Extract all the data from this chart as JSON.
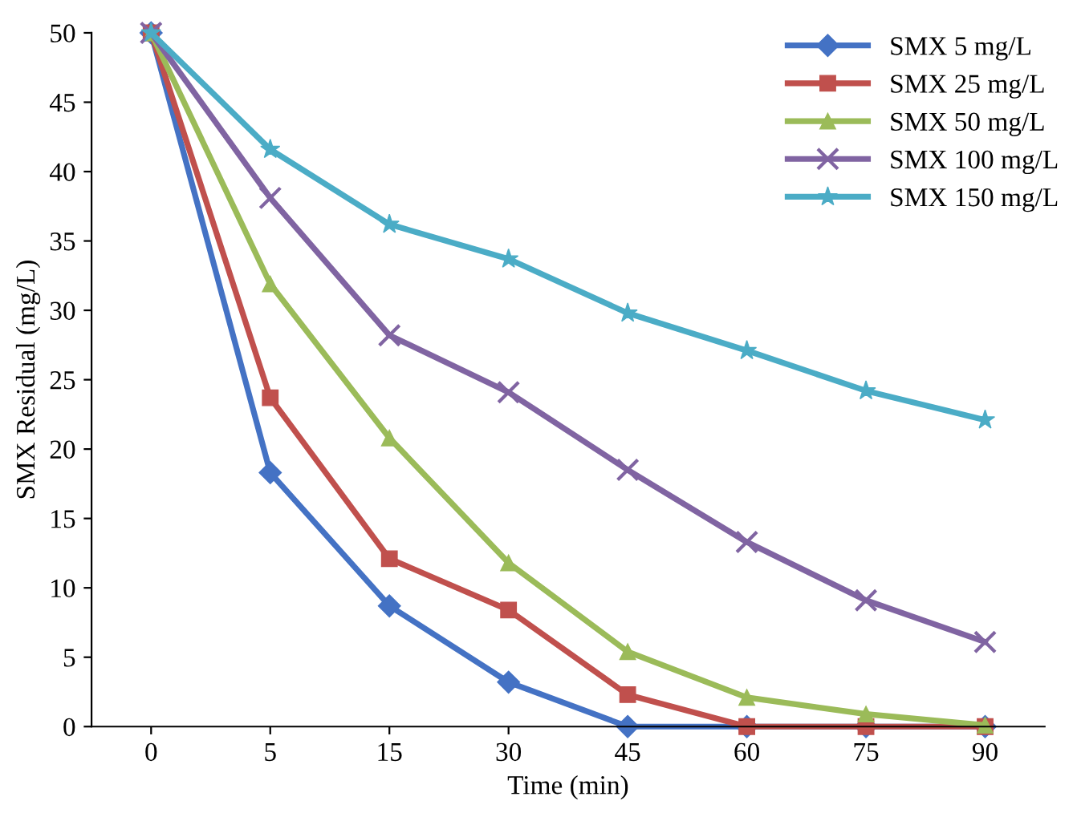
{
  "chart_data": {
    "type": "line",
    "xlabel": "Time (min)",
    "ylabel": "SMX Residual (mg/L)",
    "categories": [
      "0",
      "5",
      "15",
      "30",
      "45",
      "60",
      "75",
      "90"
    ],
    "ylim": [
      0,
      50
    ],
    "yticks": [
      0,
      5,
      10,
      15,
      20,
      25,
      30,
      35,
      40,
      45,
      50
    ],
    "grid": false,
    "legend": "top right",
    "line_style": "solid",
    "series": [
      {
        "name": "SMX 5 mg/L",
        "color": "#4472c4",
        "marker": "diamond",
        "values": [
          50,
          18.3,
          8.7,
          3.2,
          0,
          0,
          0,
          0
        ]
      },
      {
        "name": "SMX 25 mg/L",
        "color": "#c0504d",
        "marker": "square",
        "values": [
          50,
          23.7,
          12.1,
          8.4,
          2.3,
          0,
          0,
          0
        ]
      },
      {
        "name": "SMX 50 mg/L",
        "color": "#9bbb59",
        "marker": "triangle",
        "values": [
          50,
          31.9,
          20.8,
          11.8,
          5.4,
          2.1,
          0.9,
          0.1
        ]
      },
      {
        "name": "SMX 100 mg/L",
        "color": "#8064a2",
        "marker": "cross",
        "values": [
          50,
          38.1,
          28.2,
          24.1,
          18.5,
          13.3,
          9.1,
          6.1
        ]
      },
      {
        "name": "SMX 150 mg/L",
        "color": "#4bacc6",
        "marker": "star",
        "values": [
          50,
          41.6,
          36.2,
          33.7,
          29.8,
          27.1,
          24.2,
          22.1
        ]
      }
    ]
  }
}
